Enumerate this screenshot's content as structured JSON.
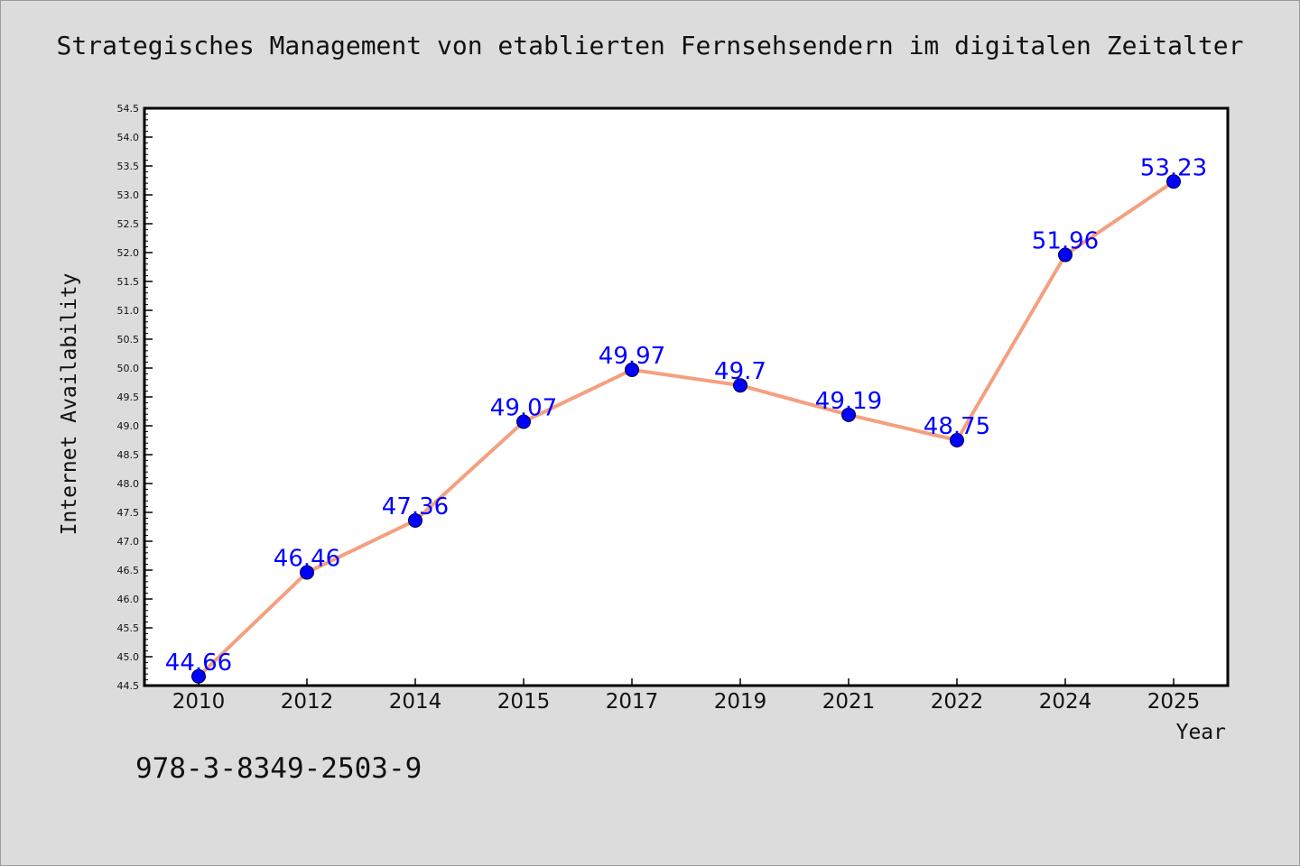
{
  "chart_data": {
    "type": "line",
    "title": "Strategisches Management von etablierten Fernsehsendern im digitalen Zeitalter",
    "xlabel": "Year",
    "ylabel": "Internet Availability",
    "categories": [
      "2010",
      "2012",
      "2014",
      "2015",
      "2017",
      "2019",
      "2021",
      "2022",
      "2024",
      "2025"
    ],
    "values": [
      44.66,
      46.46,
      47.36,
      49.07,
      49.97,
      49.7,
      49.19,
      48.75,
      51.96,
      53.23
    ],
    "data_labels": [
      "44.66",
      "46.46",
      "47.36",
      "49.07",
      "49.97",
      "49.7",
      "49.19",
      "48.75",
      "51.96",
      "53.23"
    ],
    "ylim": [
      44.5,
      54.5
    ],
    "yticks": [
      "44.5",
      "45.0",
      "45.5",
      "46.0",
      "46.5",
      "47.0",
      "47.5",
      "48.0",
      "48.5",
      "49.0",
      "49.5",
      "50.0",
      "50.5",
      "51.0",
      "51.5",
      "52.0",
      "52.5",
      "53.0",
      "53.5",
      "54.0",
      "54.5"
    ],
    "grid": false,
    "colors": {
      "line": "#f4a07f",
      "marker": "#0000ff",
      "data_label": "#0000ff",
      "plot_background": "#ffffff",
      "figure_background": "#dcdcdc"
    }
  },
  "footer": {
    "isbn": "978-3-8349-2503-9"
  }
}
